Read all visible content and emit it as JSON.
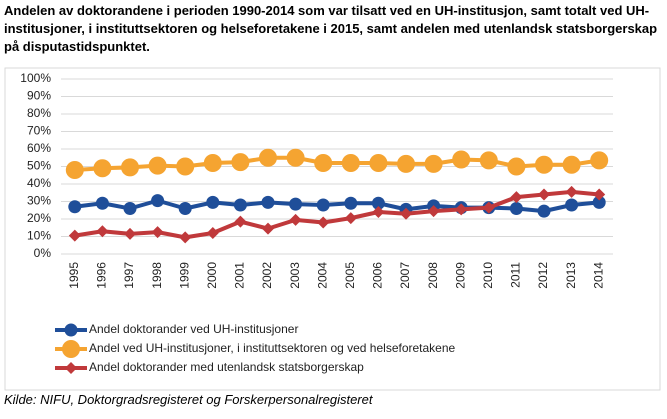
{
  "chart_data": {
    "type": "line",
    "title": "Andelen av doktorandene i perioden 1990-2014 som var tilsatt ved en UH-institusjon, samt totalt ved UH-institusjoner, i instituttsektoren og helseforetakene i 2015, samt andelen med utenlandsk statsborgerskap på disputastidspunktet.",
    "source": "Kilde: NIFU, Doktorgradsregisteret og Forskerpersonalregisteret",
    "categories": [
      "1995",
      "1996",
      "1997",
      "1998",
      "1999",
      "2000",
      "2001",
      "2002",
      "2003",
      "2004",
      "2005",
      "2006",
      "2007",
      "2008",
      "2009",
      "2010",
      "2011",
      "2012",
      "2013",
      "2014"
    ],
    "series": [
      {
        "name": "Andel doktorander ved UH-institusjoner",
        "color": "#1f4e99",
        "marker": "circle",
        "values": [
          27,
          29,
          26,
          30.5,
          26,
          29.5,
          28,
          29.5,
          28.5,
          28,
          29,
          29,
          25.5,
          27.5,
          26.5,
          26.5,
          26,
          24.5,
          28,
          29.5
        ]
      },
      {
        "name": "Andel ved UH-institusjoner, i instituttsektoren og ved helseforetakene",
        "color": "#f5a431",
        "marker": "big-circle",
        "values": [
          48,
          49,
          49.5,
          50.5,
          50,
          52,
          52.5,
          55,
          55,
          52,
          52,
          52,
          51.5,
          51.5,
          54,
          53.5,
          50,
          51,
          51,
          53.5
        ]
      },
      {
        "name": "Andel doktorander med utenlandsk statsborgerskap",
        "color": "#c0393b",
        "marker": "diamond",
        "values": [
          10.5,
          13,
          11.5,
          12.5,
          9.5,
          12,
          18.5,
          14.5,
          19.5,
          18,
          20.5,
          24,
          23,
          24.5,
          25.5,
          26.5,
          32.5,
          34,
          35.5,
          34
        ]
      }
    ],
    "ylim": [
      0,
      100
    ],
    "yticks": [
      {
        "value": 0,
        "label": "0%"
      },
      {
        "value": 10,
        "label": "10%"
      },
      {
        "value": 20,
        "label": "20%"
      },
      {
        "value": 30,
        "label": "30%"
      },
      {
        "value": 40,
        "label": "40%"
      },
      {
        "value": 50,
        "label": "50%"
      },
      {
        "value": 60,
        "label": "60%"
      },
      {
        "value": 70,
        "label": "70%"
      },
      {
        "value": 80,
        "label": "80%"
      },
      {
        "value": 90,
        "label": "90%"
      },
      {
        "value": 100,
        "label": "100%"
      }
    ],
    "grid": true
  }
}
